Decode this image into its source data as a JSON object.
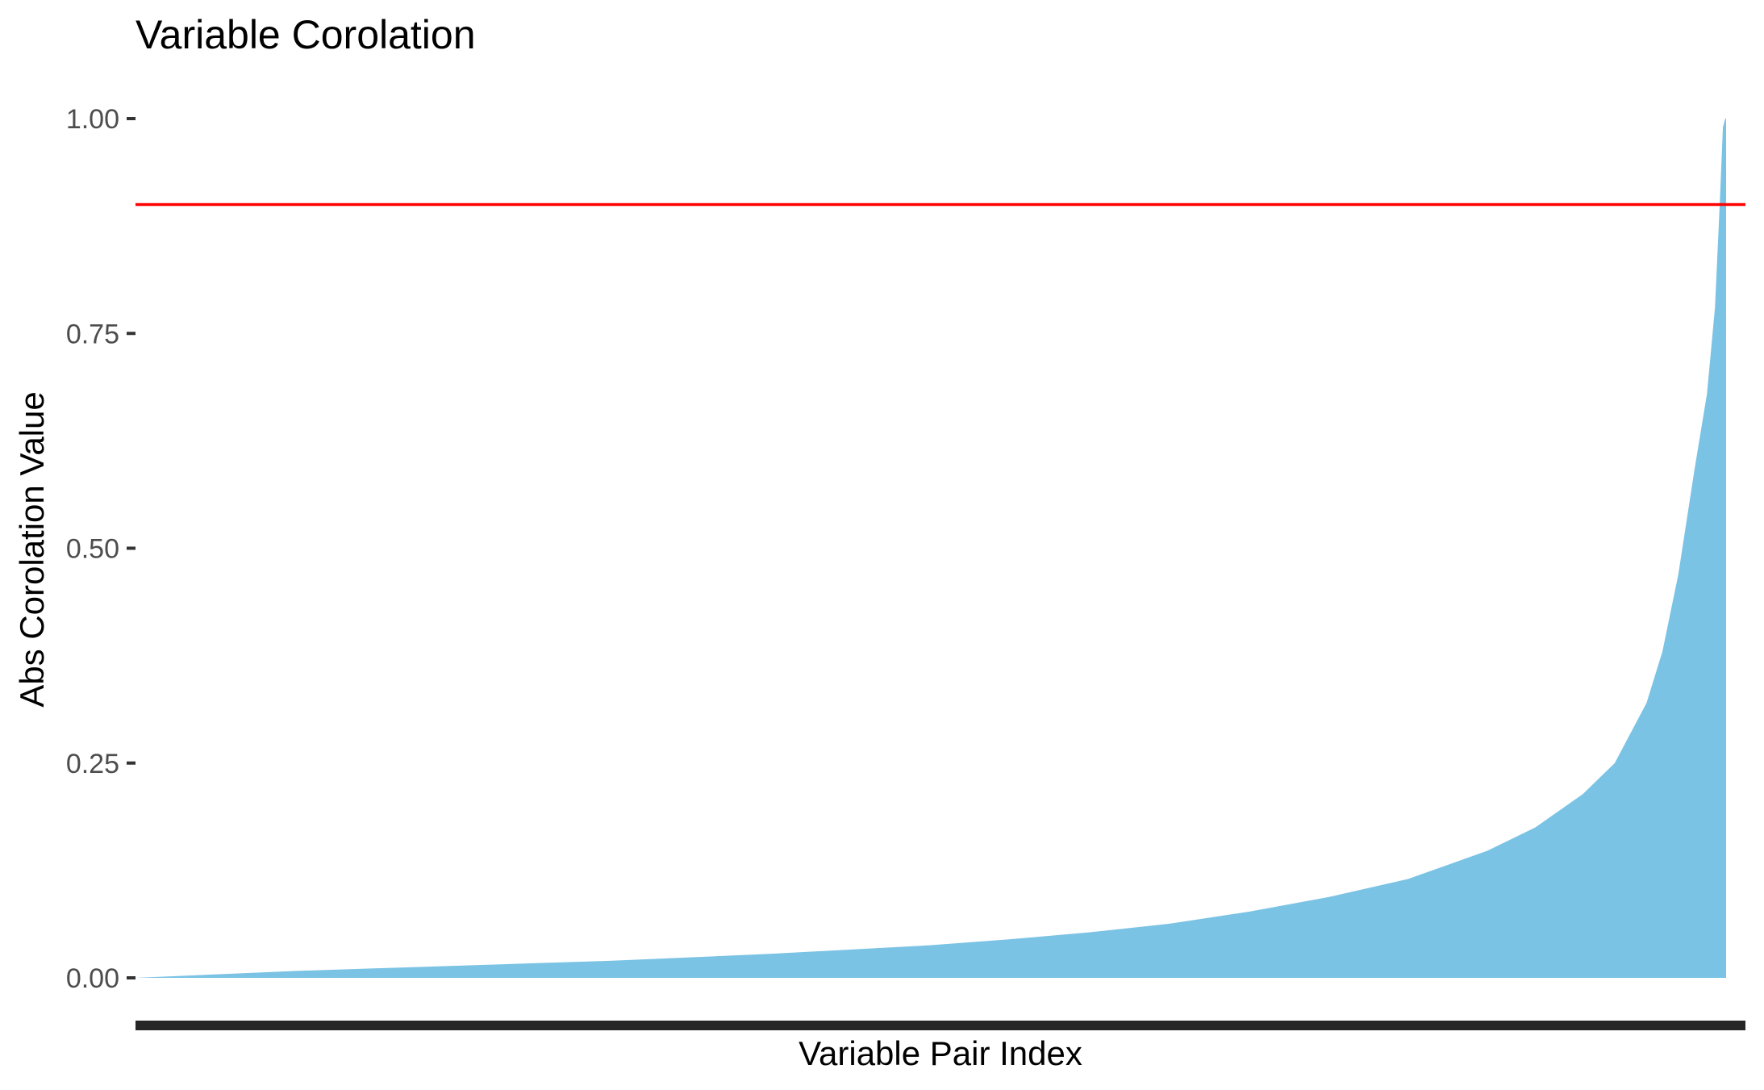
{
  "chart_data": {
    "type": "area",
    "title": "Variable Corolation",
    "xlabel": "Variable Pair Index",
    "ylabel": "Abs Corolation Value",
    "ylim": [
      0,
      1
    ],
    "yticks": [
      0,
      0.25,
      0.5,
      0.75,
      1
    ],
    "ytick_labels": [
      "0.00",
      "0.25",
      "0.50",
      "0.75",
      "1.00"
    ],
    "grid": false,
    "xlim": [
      0,
      1
    ],
    "fill_color": "#7BC3E4",
    "threshold": {
      "value": 0.9,
      "color": "#FF0000"
    },
    "series": [
      {
        "values": [
          {
            "x": 0.0,
            "y": 0.0
          },
          {
            "x": 0.05,
            "y": 0.004
          },
          {
            "x": 0.1,
            "y": 0.008
          },
          {
            "x": 0.15,
            "y": 0.011
          },
          {
            "x": 0.2,
            "y": 0.014
          },
          {
            "x": 0.25,
            "y": 0.017
          },
          {
            "x": 0.3,
            "y": 0.02
          },
          {
            "x": 0.35,
            "y": 0.024
          },
          {
            "x": 0.4,
            "y": 0.028
          },
          {
            "x": 0.45,
            "y": 0.033
          },
          {
            "x": 0.5,
            "y": 0.038
          },
          {
            "x": 0.55,
            "y": 0.045
          },
          {
            "x": 0.6,
            "y": 0.053
          },
          {
            "x": 0.65,
            "y": 0.063
          },
          {
            "x": 0.7,
            "y": 0.077
          },
          {
            "x": 0.75,
            "y": 0.094
          },
          {
            "x": 0.8,
            "y": 0.115
          },
          {
            "x": 0.85,
            "y": 0.148
          },
          {
            "x": 0.88,
            "y": 0.175
          },
          {
            "x": 0.91,
            "y": 0.214
          },
          {
            "x": 0.93,
            "y": 0.25
          },
          {
            "x": 0.95,
            "y": 0.32
          },
          {
            "x": 0.96,
            "y": 0.38
          },
          {
            "x": 0.97,
            "y": 0.47
          },
          {
            "x": 0.98,
            "y": 0.59
          },
          {
            "x": 0.988,
            "y": 0.68
          },
          {
            "x": 0.993,
            "y": 0.78
          },
          {
            "x": 0.996,
            "y": 0.9
          },
          {
            "x": 0.998,
            "y": 0.99
          },
          {
            "x": 0.9995,
            "y": 1.0
          },
          {
            "x": 1.0,
            "y": 1.0
          }
        ]
      }
    ]
  }
}
